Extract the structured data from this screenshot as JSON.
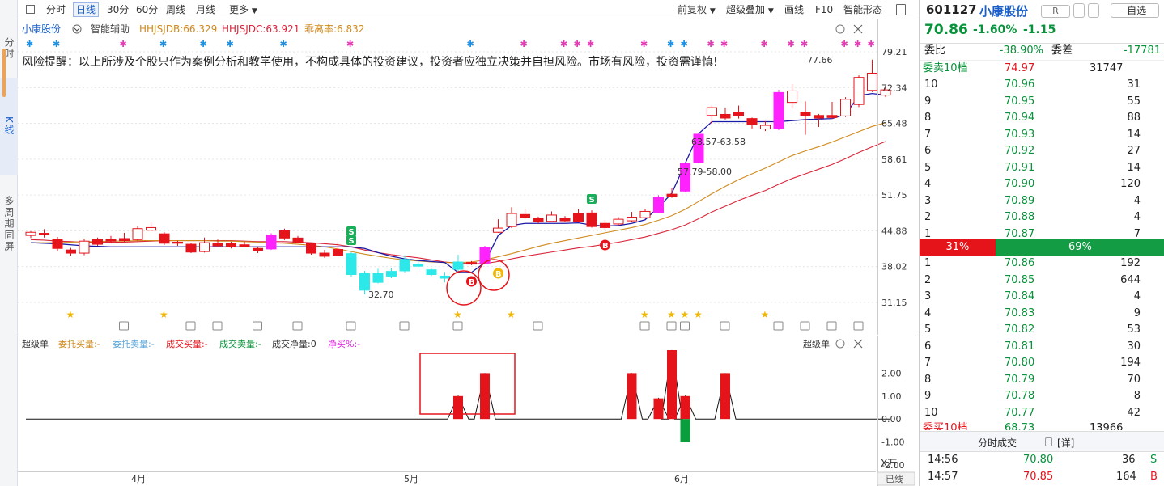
{
  "leftbar": {
    "items": [
      "分时",
      "K线",
      "多周期同屏"
    ]
  },
  "toolbar": {
    "items": [
      "分时",
      "日线",
      "30分",
      "60分",
      "周线",
      "月线",
      "更多"
    ],
    "right_items": [
      "前复权",
      "超级叠加",
      "画线",
      "F10",
      "智能形态"
    ],
    "more_arrow": "▼"
  },
  "main": {
    "stock_name": "小康股份",
    "assist_label": "智能辅助",
    "ind1": "HHJSJDB:66.329",
    "ind2": "HHJSJDC:63.921",
    "ind3": "乖离率:6.832",
    "warning": "风险提醒：以上所涉及个股只作为案例分析和教学使用，不构成具体的投资建议，投资者应独立决策并自担风险。市场有风险，投资需谨慎!",
    "high_label": "77.66",
    "low_label": "32.70",
    "range1": "57.79-58.00",
    "range2": "63.57-63.58",
    "y_ticks": [
      "79.21",
      "72.34",
      "65.48",
      "58.61",
      "51.75",
      "44.88",
      "38.02",
      "31.15"
    ],
    "sell_mark": "S",
    "buy_mark": "B"
  },
  "indicator": {
    "title": "超级单",
    "items": [
      "委托买量:-",
      "委托卖量:-",
      "成交买量:-",
      "成交卖量:-",
      "成交净量:0",
      "净买%:-"
    ],
    "right_title": "超级单",
    "y_ticks": [
      "2.00",
      "1.00",
      "0.00",
      "-1.00",
      "-2.00"
    ],
    "unit": "X万",
    "x_labels": [
      "4月",
      "5月",
      "6月"
    ],
    "scroll_label": "已线"
  },
  "quote": {
    "code": "601127",
    "name": "小康股份",
    "tag": "R",
    "add_label": "自选",
    "price": "70.86",
    "change_pct": "-1.60%",
    "change": "-1.15",
    "weibi_label": "委比",
    "weibi_value": "-38.90%",
    "weicha_label": "委差",
    "weicha_value": "-17781",
    "sell10_label": "委卖10档",
    "sell10_price": "74.97",
    "sell10_vol": "31747",
    "asks": [
      {
        "lvl": "10",
        "price": "70.96",
        "vol": "31"
      },
      {
        "lvl": "9",
        "price": "70.95",
        "vol": "55"
      },
      {
        "lvl": "8",
        "price": "70.94",
        "vol": "88"
      },
      {
        "lvl": "7",
        "price": "70.93",
        "vol": "14"
      },
      {
        "lvl": "6",
        "price": "70.92",
        "vol": "27"
      },
      {
        "lvl": "5",
        "price": "70.91",
        "vol": "14"
      },
      {
        "lvl": "4",
        "price": "70.90",
        "vol": "120"
      },
      {
        "lvl": "3",
        "price": "70.89",
        "vol": "4"
      },
      {
        "lvl": "2",
        "price": "70.88",
        "vol": "4"
      },
      {
        "lvl": "1",
        "price": "70.87",
        "vol": "7"
      }
    ],
    "ratio_sell": "31%",
    "ratio_buy": "69%",
    "ratio_sell_frac": 0.31,
    "bids": [
      {
        "lvl": "1",
        "price": "70.86",
        "vol": "192"
      },
      {
        "lvl": "2",
        "price": "70.85",
        "vol": "644"
      },
      {
        "lvl": "3",
        "price": "70.84",
        "vol": "4"
      },
      {
        "lvl": "4",
        "price": "70.83",
        "vol": "9"
      },
      {
        "lvl": "5",
        "price": "70.82",
        "vol": "53"
      },
      {
        "lvl": "6",
        "price": "70.81",
        "vol": "30"
      },
      {
        "lvl": "7",
        "price": "70.80",
        "vol": "194"
      },
      {
        "lvl": "8",
        "price": "70.79",
        "vol": "70"
      },
      {
        "lvl": "9",
        "price": "70.78",
        "vol": "8"
      },
      {
        "lvl": "10",
        "price": "70.77",
        "vol": "42"
      }
    ],
    "buy10_label": "委买10档",
    "buy10_price": "68.73",
    "buy10_vol": "13966",
    "trades_title": "分时成交",
    "detail_label": "[详]",
    "trades": [
      {
        "time": "14:56",
        "price": "70.80",
        "vol": "36",
        "side": "S"
      },
      {
        "time": "14:57",
        "price": "70.85",
        "vol": "164",
        "side": "B"
      }
    ]
  },
  "colors": {
    "up": "#e5141b",
    "down": "#08923a",
    "cyan": "#2de8e8",
    "magenta": "#ff22ff",
    "accent": "#1a5fc9"
  },
  "chart_data": {
    "type": "candlestick",
    "ylim": [
      31.15,
      79.21
    ],
    "candles": [
      {
        "o": 44.0,
        "c": 44.6,
        "h": 44.8,
        "l": 43.5,
        "col": "up"
      },
      {
        "o": 44.4,
        "c": 44.3,
        "h": 45.2,
        "l": 43.6,
        "col": "down"
      },
      {
        "o": 43.3,
        "c": 41.5,
        "h": 43.7,
        "l": 41.0,
        "col": "down"
      },
      {
        "o": 41.2,
        "c": 40.6,
        "h": 41.6,
        "l": 40.0,
        "col": "down"
      },
      {
        "o": 40.6,
        "c": 42.9,
        "h": 43.4,
        "l": 40.2,
        "col": "up"
      },
      {
        "o": 42.3,
        "c": 43.2,
        "h": 43.6,
        "l": 42.0,
        "col": "down"
      },
      {
        "o": 42.9,
        "c": 43.3,
        "h": 43.9,
        "l": 42.5,
        "col": "down"
      },
      {
        "o": 43.0,
        "c": 43.4,
        "h": 44.5,
        "l": 42.8,
        "col": "down"
      },
      {
        "o": 43.2,
        "c": 45.3,
        "h": 45.7,
        "l": 43.0,
        "col": "up"
      },
      {
        "o": 45.0,
        "c": 45.5,
        "h": 46.4,
        "l": 44.8,
        "col": "up"
      },
      {
        "o": 44.3,
        "c": 42.5,
        "h": 44.6,
        "l": 42.2,
        "col": "down"
      },
      {
        "o": 42.7,
        "c": 42.5,
        "h": 43.0,
        "l": 42.0,
        "col": "down"
      },
      {
        "o": 42.3,
        "c": 40.8,
        "h": 42.5,
        "l": 40.6,
        "col": "down"
      },
      {
        "o": 40.9,
        "c": 42.6,
        "h": 43.6,
        "l": 40.7,
        "col": "up"
      },
      {
        "o": 42.5,
        "c": 42.0,
        "h": 43.2,
        "l": 41.8,
        "col": "down"
      },
      {
        "o": 41.8,
        "c": 42.4,
        "h": 42.8,
        "l": 41.5,
        "col": "down"
      },
      {
        "o": 42.2,
        "c": 41.9,
        "h": 42.8,
        "l": 41.7,
        "col": "down"
      },
      {
        "o": 41.5,
        "c": 41.1,
        "h": 41.9,
        "l": 40.6,
        "col": "down"
      },
      {
        "o": 41.4,
        "c": 44.1,
        "h": 44.4,
        "l": 41.2,
        "col": "magenta"
      },
      {
        "o": 43.5,
        "c": 44.9,
        "h": 45.3,
        "l": 43.1,
        "col": "down"
      },
      {
        "o": 43.5,
        "c": 42.7,
        "h": 43.9,
        "l": 42.5,
        "col": "down"
      },
      {
        "o": 42.4,
        "c": 40.6,
        "h": 42.6,
        "l": 40.3,
        "col": "down"
      },
      {
        "o": 40.6,
        "c": 40.0,
        "h": 41.2,
        "l": 39.7,
        "col": "down"
      },
      {
        "o": 41.3,
        "c": 40.2,
        "h": 42.7,
        "l": 40.0,
        "col": "down"
      },
      {
        "o": 40.5,
        "c": 36.5,
        "h": 40.8,
        "l": 36.1,
        "col": "cyan"
      },
      {
        "o": 36.7,
        "c": 33.5,
        "h": 37.2,
        "l": 32.7,
        "col": "cyan"
      },
      {
        "o": 35.0,
        "c": 36.7,
        "h": 37.6,
        "l": 34.8,
        "col": "cyan"
      },
      {
        "o": 36.2,
        "c": 37.1,
        "h": 37.8,
        "l": 35.8,
        "col": "cyan"
      },
      {
        "o": 37.2,
        "c": 39.4,
        "h": 40.2,
        "l": 36.9,
        "col": "cyan"
      },
      {
        "o": 38.4,
        "c": 38.1,
        "h": 39.0,
        "l": 37.9,
        "col": "cyan"
      },
      {
        "o": 37.4,
        "c": 36.5,
        "h": 37.6,
        "l": 36.2,
        "col": "cyan"
      },
      {
        "o": 35.8,
        "c": 36.2,
        "h": 37.0,
        "l": 35.0,
        "col": "cyan"
      },
      {
        "o": 37.5,
        "c": 38.9,
        "h": 40.3,
        "l": 37.1,
        "col": "cyan"
      },
      {
        "o": 38.8,
        "c": 38.5,
        "h": 39.1,
        "l": 38.3,
        "col": "down"
      },
      {
        "o": 38.7,
        "c": 41.7,
        "h": 42.0,
        "l": 38.5,
        "col": "magenta"
      },
      {
        "o": 44.6,
        "c": 45.4,
        "h": 47.1,
        "l": 44.5,
        "col": "up"
      },
      {
        "o": 45.7,
        "c": 48.2,
        "h": 49.4,
        "l": 45.4,
        "col": "up"
      },
      {
        "o": 48.0,
        "c": 47.4,
        "h": 49.0,
        "l": 47.1,
        "col": "down"
      },
      {
        "o": 47.3,
        "c": 46.7,
        "h": 47.6,
        "l": 46.3,
        "col": "down"
      },
      {
        "o": 46.7,
        "c": 47.9,
        "h": 48.6,
        "l": 46.5,
        "col": "up"
      },
      {
        "o": 47.3,
        "c": 46.8,
        "h": 47.7,
        "l": 46.5,
        "col": "down"
      },
      {
        "o": 46.7,
        "c": 48.2,
        "h": 49.0,
        "l": 46.5,
        "col": "down"
      },
      {
        "o": 48.3,
        "c": 45.7,
        "h": 48.8,
        "l": 45.5,
        "col": "down"
      },
      {
        "o": 45.5,
        "c": 46.3,
        "h": 46.9,
        "l": 45.1,
        "col": "down"
      },
      {
        "o": 46.2,
        "c": 47.1,
        "h": 47.5,
        "l": 45.9,
        "col": "up"
      },
      {
        "o": 46.8,
        "c": 47.5,
        "h": 48.5,
        "l": 46.6,
        "col": "up"
      },
      {
        "o": 47.4,
        "c": 48.6,
        "h": 49.0,
        "l": 47.2,
        "col": "up"
      },
      {
        "o": 48.4,
        "c": 51.3,
        "h": 51.7,
        "l": 48.3,
        "col": "magenta"
      },
      {
        "o": 51.4,
        "c": 51.9,
        "h": 53.0,
        "l": 51.2,
        "col": "down"
      },
      {
        "o": 52.5,
        "c": 57.8,
        "h": 58.0,
        "l": 52.3,
        "col": "magenta"
      },
      {
        "o": 57.9,
        "c": 63.4,
        "h": 63.6,
        "l": 57.8,
        "col": "magenta"
      },
      {
        "o": 67.0,
        "c": 68.5,
        "h": 68.9,
        "l": 65.4,
        "col": "up"
      },
      {
        "o": 67.2,
        "c": 66.5,
        "h": 68.5,
        "l": 66.2,
        "col": "down"
      },
      {
        "o": 67.6,
        "c": 66.9,
        "h": 68.9,
        "l": 66.4,
        "col": "down"
      },
      {
        "o": 65.2,
        "c": 66.4,
        "h": 66.6,
        "l": 64.5,
        "col": "down"
      },
      {
        "o": 64.4,
        "c": 65.1,
        "h": 65.9,
        "l": 64.0,
        "col": "up"
      },
      {
        "o": 64.5,
        "c": 71.4,
        "h": 71.9,
        "l": 64.2,
        "col": "magenta"
      },
      {
        "o": 69.5,
        "c": 71.7,
        "h": 73.0,
        "l": 68.4,
        "col": "up"
      },
      {
        "o": 67.6,
        "c": 67.0,
        "h": 69.7,
        "l": 63.3,
        "col": "down"
      },
      {
        "o": 66.5,
        "c": 67.0,
        "h": 67.3,
        "l": 64.8,
        "col": "down"
      },
      {
        "o": 66.6,
        "c": 67.0,
        "h": 69.6,
        "l": 66.3,
        "col": "down"
      },
      {
        "o": 66.9,
        "c": 70.1,
        "h": 70.5,
        "l": 66.7,
        "col": "up"
      },
      {
        "o": 69.1,
        "c": 74.3,
        "h": 74.7,
        "l": 68.6,
        "col": "up"
      },
      {
        "o": 75.1,
        "c": 71.8,
        "h": 77.7,
        "l": 71.5,
        "col": "up"
      },
      {
        "o": 71.9,
        "c": 70.9,
        "h": 72.3,
        "l": 70.5,
        "col": "up"
      }
    ],
    "ma_red": [
      43.2,
      43.1,
      42.9,
      42.8,
      42.7,
      42.7,
      42.7,
      42.7,
      42.8,
      42.9,
      43.0,
      43.0,
      43.0,
      43.0,
      43.0,
      43.0,
      42.9,
      42.8,
      42.8,
      42.8,
      42.7,
      42.6,
      42.4,
      42.2,
      41.8,
      41.2,
      40.7,
      40.3,
      40.0,
      39.7,
      39.3,
      38.9,
      38.7,
      38.6,
      38.6,
      39.0,
      39.5,
      40.0,
      40.4,
      40.8,
      41.2,
      41.6,
      41.9,
      42.3,
      42.7,
      43.2,
      43.7,
      44.4,
      45.1,
      46.0,
      47.2,
      48.5,
      49.6,
      50.7,
      51.7,
      52.6,
      53.8,
      54.9,
      55.8,
      56.7,
      57.6,
      58.7,
      59.9,
      61.0,
      62.0
    ],
    "ma_orange": [
      42.6,
      42.6,
      42.6,
      42.7,
      42.8,
      42.8,
      42.9,
      42.9,
      43.0,
      43.0,
      43.0,
      43.0,
      43.0,
      43.0,
      42.9,
      42.9,
      42.8,
      42.7,
      42.6,
      42.5,
      42.3,
      42.1,
      41.8,
      41.4,
      40.9,
      40.4,
      40.0,
      39.6,
      39.3,
      39.1,
      38.9,
      38.8,
      38.8,
      38.9,
      39.3,
      39.9,
      40.5,
      41.2,
      41.9,
      42.5,
      43.0,
      43.5,
      44.0,
      44.5,
      45.0,
      45.5,
      46.1,
      46.9,
      47.8,
      49.0,
      50.5,
      52.0,
      53.4,
      54.7,
      55.8,
      56.9,
      58.1,
      59.3,
      60.2,
      61.0,
      61.9,
      62.9,
      63.9,
      64.9,
      65.6
    ],
    "ma_blue": [
      42.6,
      42.5,
      42.4,
      42.2,
      42.0,
      41.9,
      41.8,
      41.8,
      41.8,
      41.8,
      41.8,
      41.8,
      41.8,
      41.8,
      41.8,
      41.8,
      41.8,
      41.8,
      41.8,
      41.8,
      41.8,
      41.8,
      41.8,
      41.8,
      41.8,
      41.5,
      40.7,
      40.0,
      39.5,
      39.2,
      39.0,
      38.8,
      36.9,
      36.9,
      38.8,
      44.0,
      45.9,
      46.3,
      46.3,
      46.3,
      46.3,
      46.4,
      46.0,
      45.8,
      45.9,
      46.3,
      47.0,
      49.4,
      52.1,
      57.8,
      63.5,
      65.8,
      65.8,
      65.8,
      65.8,
      65.8,
      65.8,
      66.0,
      66.2,
      66.3,
      66.4,
      67.2,
      70.8,
      71.2,
      70.9
    ]
  },
  "indicator_data": {
    "type": "bar",
    "ylim": [
      -2.0,
      3.0
    ],
    "bars": [
      {
        "i": 32,
        "v": 1.0
      },
      {
        "i": 34,
        "v": 2.0
      },
      {
        "i": 45,
        "v": 2.0
      },
      {
        "i": 47,
        "v": 0.9
      },
      {
        "i": 48,
        "v": 3.0
      },
      {
        "i": 49,
        "v": 1.0
      },
      {
        "i": 49,
        "v": -1.0
      },
      {
        "i": 52,
        "v": 2.0
      }
    ]
  }
}
